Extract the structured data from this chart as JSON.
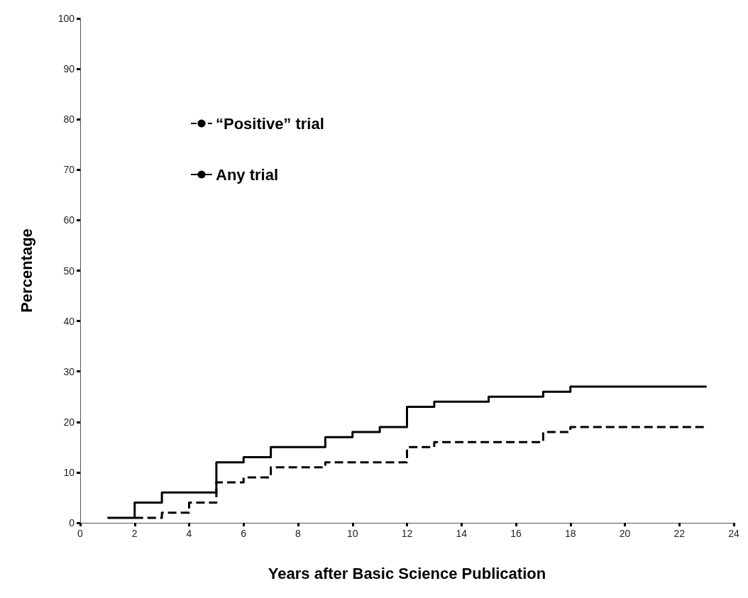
{
  "chart_data": {
    "type": "step",
    "xlabel": "Years after Basic Science Publication",
    "ylabel": "Percentage",
    "xlim": [
      0,
      24
    ],
    "xticks": [
      0,
      2,
      4,
      6,
      8,
      10,
      12,
      14,
      16,
      18,
      20,
      22,
      24
    ],
    "ylim": [
      0,
      100
    ],
    "yticks": [
      0,
      10,
      20,
      30,
      40,
      50,
      60,
      70,
      80,
      90,
      100
    ],
    "grid": false,
    "legend": "top left",
    "marker": "none",
    "series": [
      {
        "name": "“Positive” trial",
        "color": "#000000",
        "line_style": "dashed",
        "x": [
          2,
          3,
          4,
          5,
          6,
          7,
          9,
          12,
          13,
          17,
          18,
          23
        ],
        "values": [
          1,
          2,
          4,
          8,
          9,
          11,
          12,
          15,
          16,
          18,
          19,
          19
        ]
      },
      {
        "name": "Any trial",
        "color": "#000000",
        "line_style": "solid",
        "x": [
          1,
          2,
          3,
          5,
          6,
          7,
          9,
          10,
          11,
          12,
          13,
          15,
          17,
          18,
          23
        ],
        "values": [
          1,
          4,
          6,
          12,
          13,
          15,
          17,
          18,
          19,
          23,
          24,
          25,
          26,
          27,
          27
        ]
      }
    ]
  }
}
